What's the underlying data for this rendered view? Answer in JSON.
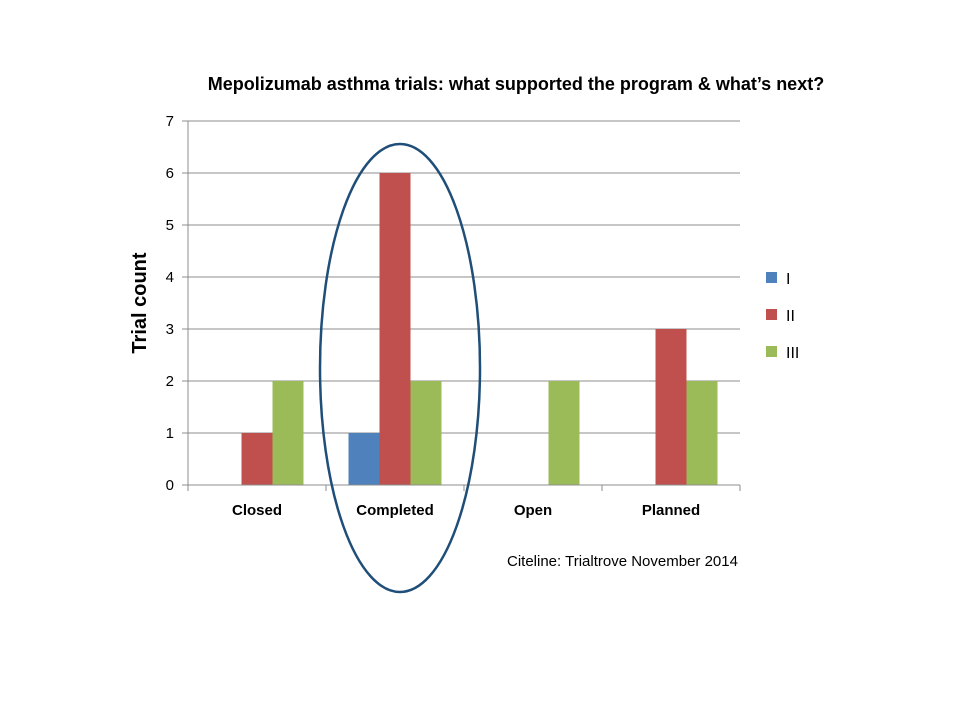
{
  "chart_data": {
    "type": "bar",
    "title": "Mepolizumab asthma trials: what supported the program & what’s next?",
    "xlabel": "",
    "ylabel": "Trial count",
    "categories": [
      "Closed",
      "Completed",
      "Open",
      "Planned"
    ],
    "series": [
      {
        "name": "I",
        "color": "#4F81BD",
        "values": [
          0,
          1,
          0,
          0
        ]
      },
      {
        "name": "II",
        "color": "#C0504D",
        "values": [
          1,
          6,
          0,
          3
        ]
      },
      {
        "name": "III",
        "color": "#9BBB59",
        "values": [
          2,
          2,
          2,
          2
        ]
      }
    ],
    "ylim": [
      0,
      7
    ],
    "yticks": [
      0,
      1,
      2,
      3,
      4,
      5,
      6,
      7
    ],
    "grid": true,
    "legend_position": "right",
    "highlight": {
      "category": "Completed",
      "shape": "ellipse",
      "color": "#1F4E79"
    },
    "source_note": "Citeline:  Trialtrove November 2014"
  }
}
